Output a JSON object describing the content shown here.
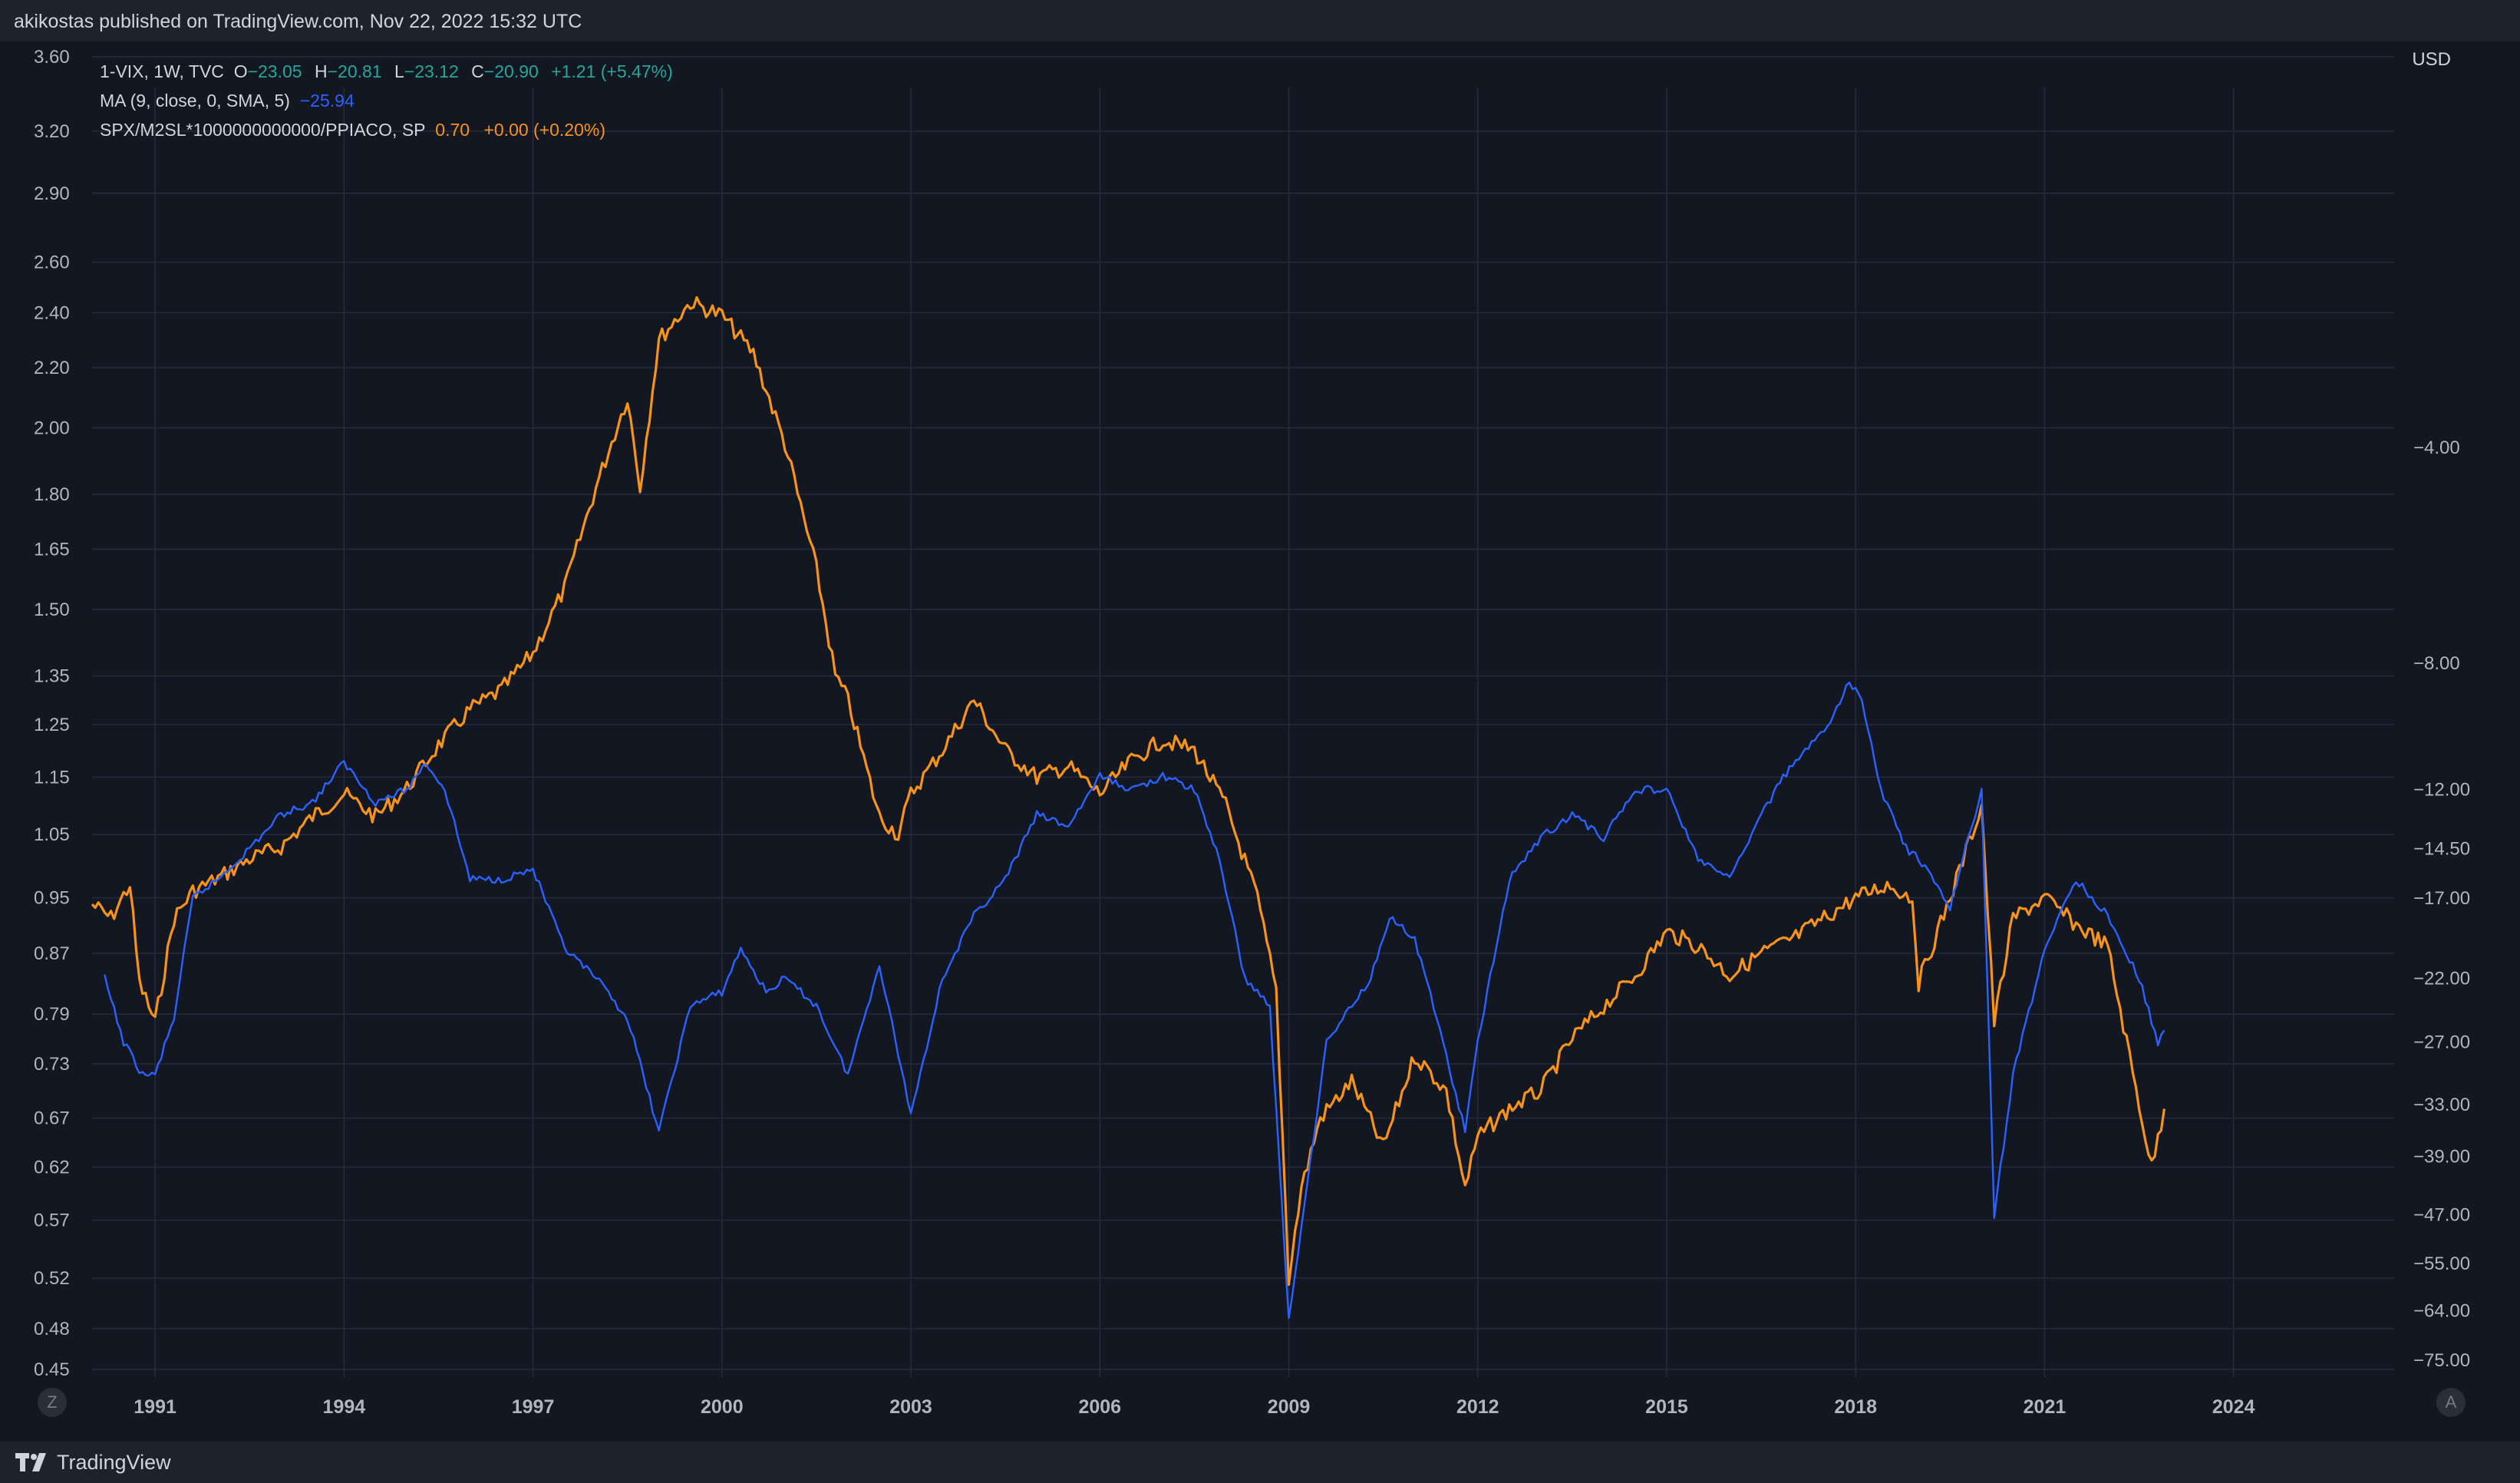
{
  "header": {
    "published": "akikostas published on TradingView.com, Nov 22, 2022 15:32 UTC"
  },
  "legend": {
    "vix": {
      "symbol": "1-VIX, 1W, TVC",
      "o_label": "O",
      "o": "−23.05",
      "h_label": "H",
      "h": "−20.81",
      "l_label": "L",
      "l": "−23.12",
      "c_label": "C",
      "c": "−20.90",
      "change": "+1.21 (+5.47%)"
    },
    "ma": {
      "label": "MA (9, close, 0, SMA, 5)",
      "value": "−25.94"
    },
    "spx": {
      "label": "SPX/M2SL*1000000000000/PPIACO, SP",
      "value": "0.70",
      "change": "+0.00 (+0.20%)"
    }
  },
  "right_axis_unit": "USD",
  "corner_left": "Z",
  "corner_right": "A",
  "footer": {
    "brand": "TradingView"
  },
  "colors": {
    "background": "#131722",
    "grid": "#262b3a",
    "axis_text": "#b2b5be",
    "orange": "#f7931a",
    "blue": "#2962ff",
    "teal": "#26a69a"
  },
  "chart_data": {
    "type": "line",
    "log_scale": true,
    "grid": true,
    "x_ticks": [
      "1991",
      "1994",
      "1997",
      "2000",
      "2003",
      "2006",
      "2009",
      "2012",
      "2015",
      "2018",
      "2021",
      "2024"
    ],
    "x_range": [
      1988.55,
      2026.55
    ],
    "left_axis": {
      "ticks": [
        "3.60",
        "3.20",
        "2.90",
        "2.60",
        "2.40",
        "2.20",
        "2.00",
        "1.80",
        "1.65",
        "1.50",
        "1.35",
        "1.25",
        "1.15",
        "1.05",
        "0.95",
        "0.87",
        "0.79",
        "0.73",
        "0.67",
        "0.62",
        "0.57",
        "0.52",
        "0.48",
        "0.45"
      ],
      "range": [
        0.45,
        3.6
      ]
    },
    "right_axis": {
      "ticks": [
        "−4.00",
        "−8.00",
        "−12.00",
        "−14.50",
        "−17.00",
        "−22.00",
        "−27.00",
        "−33.00",
        "−39.00",
        "−47.00",
        "−55.00",
        "−64.00",
        "−75.00"
      ]
    },
    "series": [
      {
        "name": "SPX/M2SL*1000000000000/PPIACO, SP",
        "color": "#f7931a",
        "axis": "left",
        "x": [
          1990.0,
          1990.3,
          1990.6,
          1990.75,
          1991.0,
          1991.3,
          1991.6,
          1992.0,
          1992.5,
          1993.0,
          1993.5,
          1994.0,
          1994.5,
          1995.0,
          1995.5,
          1996.0,
          1996.5,
          1997.0,
          1997.5,
          1998.0,
          1998.5,
          1998.7,
          1999.0,
          1999.5,
          2000.0,
          2000.5,
          2001.0,
          2001.5,
          2001.8,
          2002.0,
          2002.5,
          2002.8,
          2003.0,
          2003.5,
          2004.0,
          2004.5,
          2005.0,
          2005.5,
          2006.0,
          2006.5,
          2007.0,
          2007.5,
          2008.0,
          2008.5,
          2008.8,
          2009.0,
          2009.2,
          2009.5,
          2010.0,
          2010.5,
          2011.0,
          2011.5,
          2011.8,
          2012.0,
          2012.5,
          2013.0,
          2013.5,
          2014.0,
          2014.5,
          2015.0,
          2015.5,
          2016.0,
          2016.5,
          2017.0,
          2017.5,
          2018.0,
          2018.5,
          2018.9,
          2019.0,
          2019.5,
          2020.0,
          2020.2,
          2020.5,
          2021.0,
          2021.5,
          2022.0,
          2022.4,
          2022.7,
          2022.9
        ],
        "values": [
          0.94,
          0.92,
          0.97,
          0.83,
          0.78,
          0.92,
          0.96,
          0.98,
          1.01,
          1.03,
          1.08,
          1.12,
          1.08,
          1.13,
          1.21,
          1.28,
          1.32,
          1.4,
          1.55,
          1.82,
          2.1,
          1.82,
          2.3,
          2.44,
          2.39,
          2.25,
          1.95,
          1.6,
          1.35,
          1.3,
          1.08,
          1.05,
          1.12,
          1.2,
          1.3,
          1.2,
          1.15,
          1.17,
          1.12,
          1.18,
          1.22,
          1.2,
          1.1,
          0.95,
          0.82,
          0.52,
          0.6,
          0.67,
          0.71,
          0.64,
          0.74,
          0.7,
          0.6,
          0.65,
          0.68,
          0.7,
          0.76,
          0.8,
          0.84,
          0.9,
          0.88,
          0.84,
          0.87,
          0.89,
          0.92,
          0.95,
          0.97,
          0.95,
          0.83,
          0.95,
          1.1,
          0.78,
          0.92,
          0.95,
          0.91,
          0.88,
          0.72,
          0.62,
          0.68
        ]
      },
      {
        "name": "MA (9, close, 0, SMA, 5)",
        "color": "#2962ff",
        "axis": "right",
        "x": [
          1990.2,
          1990.5,
          1990.8,
          1991.0,
          1991.3,
          1991.6,
          1992.0,
          1992.5,
          1993.0,
          1993.5,
          1994.0,
          1994.5,
          1995.0,
          1995.3,
          1995.6,
          1996.0,
          1996.5,
          1997.0,
          1997.5,
          1998.0,
          1998.5,
          1999.0,
          1999.5,
          2000.0,
          2000.3,
          2000.7,
          2001.0,
          2001.5,
          2002.0,
          2002.5,
          2003.0,
          2003.5,
          2004.0,
          2004.5,
          2005.0,
          2005.5,
          2006.0,
          2006.5,
          2007.0,
          2007.5,
          2007.9,
          2008.3,
          2008.7,
          2009.0,
          2009.3,
          2009.6,
          2010.0,
          2010.3,
          2010.6,
          2011.0,
          2011.3,
          2011.8,
          2012.0,
          2012.5,
          2013.0,
          2013.5,
          2014.0,
          2014.5,
          2015.0,
          2015.5,
          2016.0,
          2016.5,
          2017.0,
          2017.5,
          2017.9,
          2018.1,
          2018.4,
          2018.8,
          2019.0,
          2019.5,
          2020.0,
          2020.2,
          2020.5,
          2021.0,
          2021.5,
          2022.0,
          2022.5,
          2022.8,
          2022.9
        ],
        "values": [
          -22,
          -27,
          -30,
          -30,
          -25,
          -17,
          -16,
          -14.5,
          -13,
          -12.5,
          -11,
          -12.5,
          -12,
          -11,
          -12,
          -16,
          -16,
          -15.5,
          -20,
          -22,
          -25,
          -36,
          -24,
          -23,
          -20,
          -23,
          -22,
          -24,
          -30,
          -21,
          -34,
          -22,
          -18,
          -16,
          -13,
          -13.5,
          -11.5,
          -12,
          -11.5,
          -12,
          -15,
          -22,
          -24,
          -66,
          -42,
          -27,
          -24,
          -22,
          -18,
          -19.5,
          -24,
          -36,
          -27,
          -16,
          -14,
          -13,
          -14,
          -12,
          -12,
          -15,
          -16,
          -13,
          -11,
          -10,
          -8.5,
          -9,
          -12,
          -14.5,
          -15,
          -17.5,
          -12,
          -47,
          -30,
          -20,
          -16,
          -18,
          -22,
          -27,
          -26
        ]
      }
    ]
  }
}
